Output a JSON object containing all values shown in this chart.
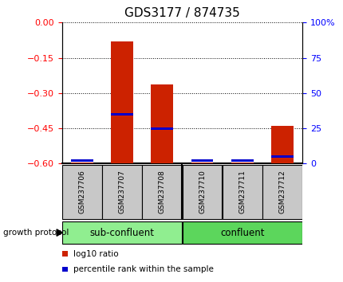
{
  "title": "GDS3177 / 874735",
  "samples": [
    "GSM237706",
    "GSM237707",
    "GSM237708",
    "GSM237710",
    "GSM237711",
    "GSM237712"
  ],
  "log10_ratio": [
    -0.595,
    -0.08,
    -0.262,
    -0.595,
    -0.595,
    -0.44
  ],
  "percentile_rank": [
    2,
    35,
    25,
    2,
    2,
    5
  ],
  "ylim_left": [
    -0.6,
    0.0
  ],
  "ylim_right": [
    0,
    100
  ],
  "yticks_left": [
    0.0,
    -0.15,
    -0.3,
    -0.45,
    -0.6
  ],
  "yticks_right": [
    100,
    75,
    50,
    25,
    0
  ],
  "groups": [
    {
      "label": "sub-confluent",
      "color": "#90EE90",
      "start": 0,
      "end": 2
    },
    {
      "label": "confluent",
      "color": "#5CD65C",
      "start": 3,
      "end": 5
    }
  ],
  "group_label": "growth protocol",
  "bar_color": "#CC2200",
  "percentile_color": "#0000CC",
  "bar_width": 0.55,
  "bg_color": "#FFFFFF",
  "sample_box_color": "#C8C8C8",
  "legend_items": [
    {
      "label": "log10 ratio",
      "color": "#CC2200"
    },
    {
      "label": "percentile rank within the sample",
      "color": "#0000CC"
    }
  ],
  "title_fontsize": 11,
  "axis_label_fontsize": 8,
  "sample_fontsize": 6.5,
  "group_fontsize": 8.5,
  "legend_fontsize": 7.5
}
